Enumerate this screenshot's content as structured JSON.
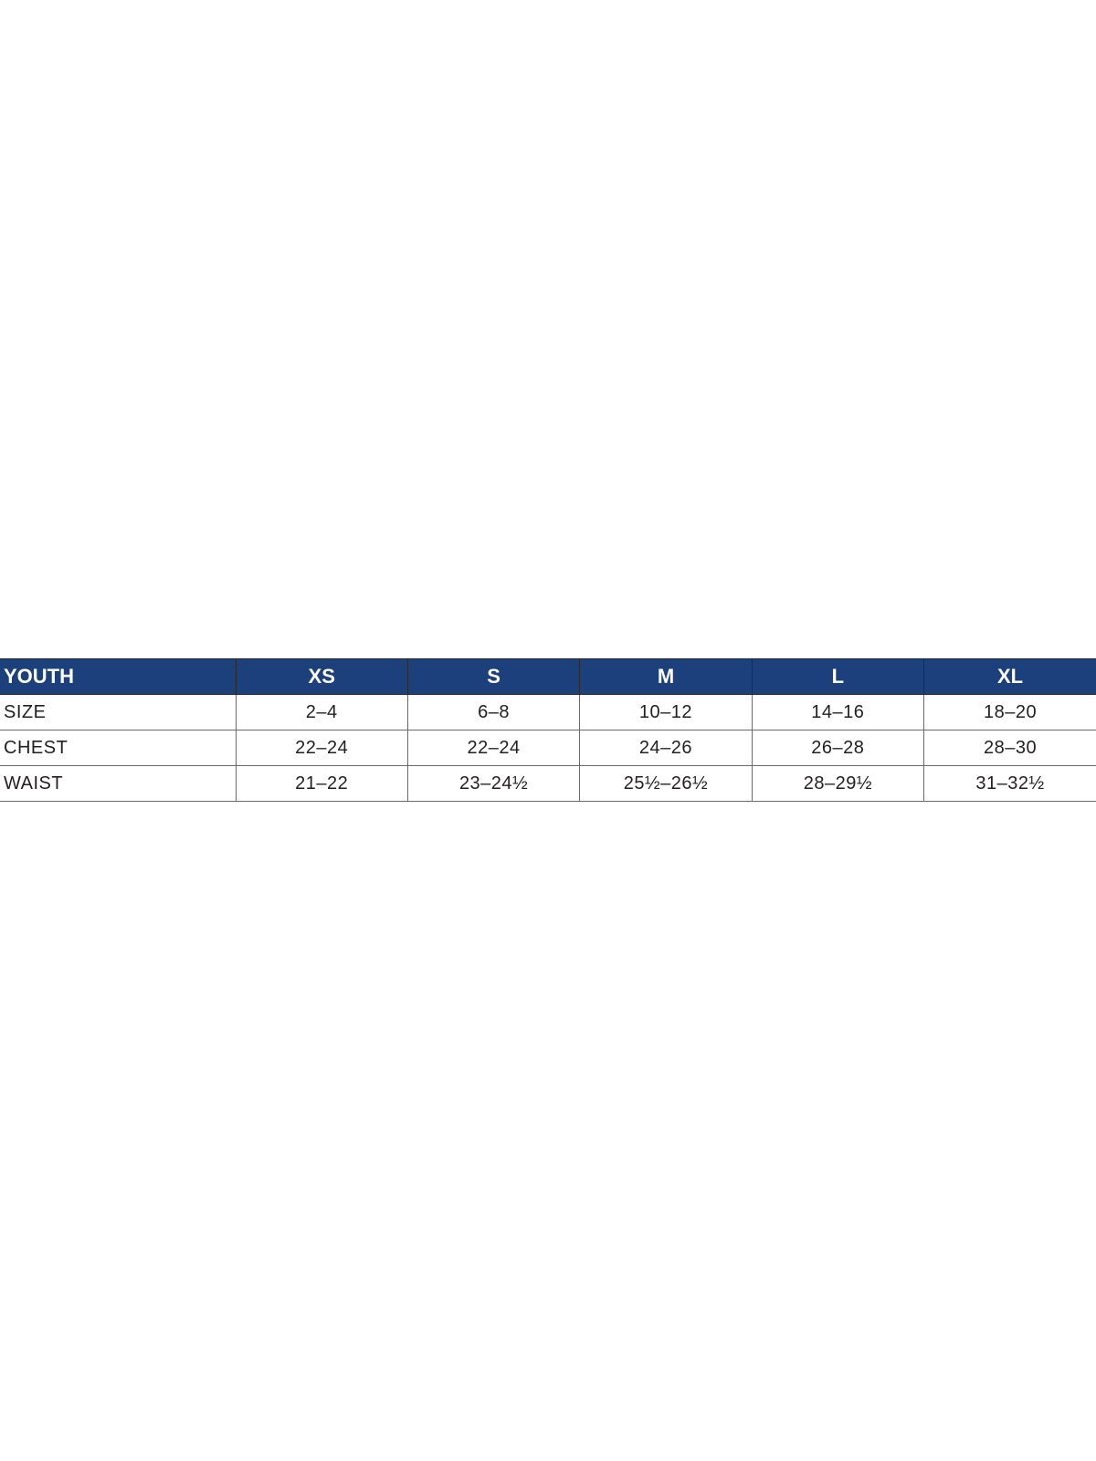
{
  "table": {
    "header": [
      "YOUTH",
      "XS",
      "S",
      "M",
      "L",
      "XL"
    ],
    "rows": [
      {
        "label": "SIZE",
        "values": [
          "2–4",
          "6–8",
          "10–12",
          "14–16",
          "18–20"
        ]
      },
      {
        "label": "CHEST",
        "values": [
          "22–24",
          "22–24",
          "24–26",
          "26–28",
          "28–30"
        ]
      },
      {
        "label": "WAIST",
        "values": [
          "21–22",
          "23–24½",
          "25½–26½",
          "28–29½",
          "31–32½"
        ]
      }
    ],
    "header_color": "#1b407b"
  }
}
